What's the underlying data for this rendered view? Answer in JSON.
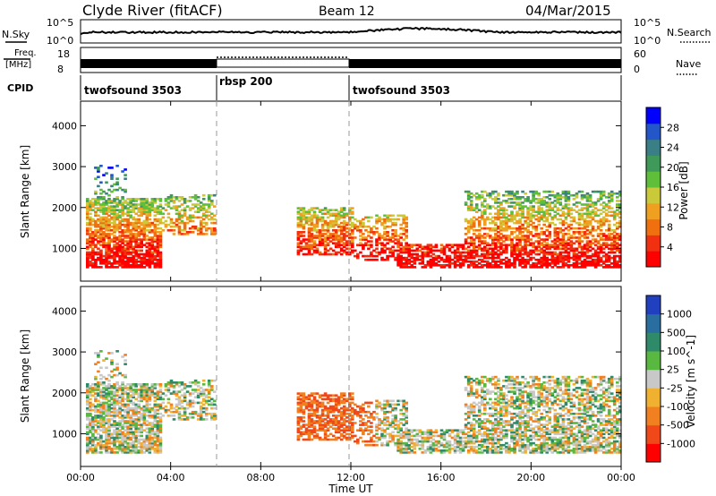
{
  "header": {
    "site": "Clyde River (fitACF)",
    "beam": "Beam 12",
    "date": "04/Mar/2015"
  },
  "nsky_panel": {
    "left_label": "N.Sky",
    "right_label": "N.Search",
    "ticks_left": [
      "10^5",
      "10^0"
    ],
    "ticks_right": [
      "10^5",
      "10^0"
    ]
  },
  "freq_panel": {
    "left_label_1": "Freq.",
    "left_label_2": "[MHz]",
    "right_label": "Nave",
    "ticks_left": [
      "18",
      "8"
    ],
    "ticks_right": [
      "60",
      "0"
    ]
  },
  "cpid": {
    "label": "CPID",
    "segments": [
      {
        "name": "twofsound 3503",
        "start_hour": 0,
        "end_hour": 6
      },
      {
        "name": "rbsp 200",
        "start_hour": 6,
        "end_hour": 12
      },
      {
        "name": "twofsound 3503",
        "start_hour": 12,
        "end_hour": 24
      }
    ]
  },
  "x_axis": {
    "label": "Time UT",
    "ticks": [
      "00:00",
      "04:00",
      "08:00",
      "12:00",
      "16:00",
      "20:00",
      "00:00"
    ],
    "range_hours": [
      0,
      24
    ]
  },
  "chart_data": [
    {
      "type": "heatmap",
      "panel": "power",
      "ylabel": "Slant Range [km]",
      "yticks": [
        1000,
        2000,
        3000,
        4000
      ],
      "ylim": [
        200,
        4600
      ],
      "colorbar": {
        "label": "Power [dB]",
        "ticks": [
          "4",
          "8",
          "12",
          "16",
          "20",
          "24",
          "28"
        ],
        "range": [
          0,
          30
        ],
        "colors": [
          "#0000ff",
          "#2356c8",
          "#3a7f86",
          "#3f9a5a",
          "#5fbf3a",
          "#c9c93a",
          "#f0a020",
          "#f07010",
          "#f03010",
          "#ff0000"
        ]
      }
    },
    {
      "type": "heatmap",
      "panel": "velocity",
      "ylabel": "Slant Range [km]",
      "yticks": [
        1000,
        2000,
        3000,
        4000
      ],
      "ylim": [
        200,
        4600
      ],
      "colorbar": {
        "label": "Velocity [m s^-1]",
        "ticks": [
          "1000",
          "500",
          "100",
          "25",
          "-25",
          "-100",
          "-500",
          "-1000"
        ],
        "colors": [
          "#2040c0",
          "#2a6ea0",
          "#2f8a6a",
          "#58b840",
          "#c8c8c8",
          "#f0b030",
          "#f08020",
          "#f04818",
          "#ff0000"
        ]
      }
    }
  ]
}
